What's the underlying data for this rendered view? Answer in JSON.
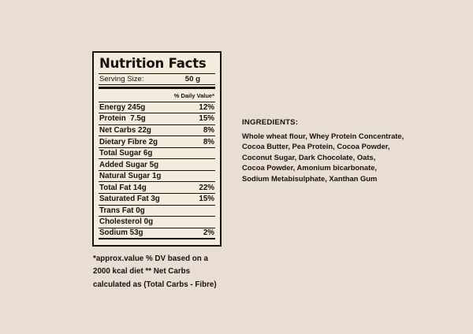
{
  "colors": {
    "page_background": "#e9ded3",
    "panel_background": "#f3ecdd",
    "ink": "#17120e"
  },
  "nutrition_label": {
    "title": "Nutrition Facts",
    "serving_size_label": "Serving Size:",
    "serving_size_value": "50 g",
    "daily_value_header": "% Daily Value*",
    "rows": [
      {
        "name": "Energy 245g",
        "dv": "12%"
      },
      {
        "name": "Protein  7.5g",
        "dv": "15%"
      },
      {
        "name": "Net Carbs 22g",
        "dv": "8%"
      },
      {
        "name": "Dietary Fibre 2g",
        "dv": "8%"
      },
      {
        "name": "Total Sugar 6g",
        "dv": ""
      },
      {
        "name": "Added Sugar 5g",
        "dv": ""
      },
      {
        "name": "Natural Sugar 1g",
        "dv": ""
      },
      {
        "name": "Total Fat 14g",
        "dv": "22%"
      },
      {
        "name": "Saturated Fat 3g",
        "dv": "15%"
      },
      {
        "name": "Trans Fat 0g",
        "dv": ""
      },
      {
        "name": "Cholesterol 0g",
        "dv": ""
      },
      {
        "name": "Sodium 53g",
        "dv": "2%"
      }
    ],
    "footnote_lines": [
      "*approx.value % DV based on a",
      "2000 kcal diet ** Net Carbs",
      "calculated as (Total Carbs - Fibre)"
    ]
  },
  "ingredients": {
    "heading": "INGREDIENTS:",
    "lines": [
      "Whole wheat flour, Whey Protein Concentrate,",
      "Cocoa Butter, Pea Protein, Cocoa Powder,",
      "Coconut Sugar, Dark Chocolate, Oats,",
      "Cocoa Powder, Amonium bicarbonate,",
      "Sodium Metabisulphate, Xanthan Gum"
    ]
  }
}
